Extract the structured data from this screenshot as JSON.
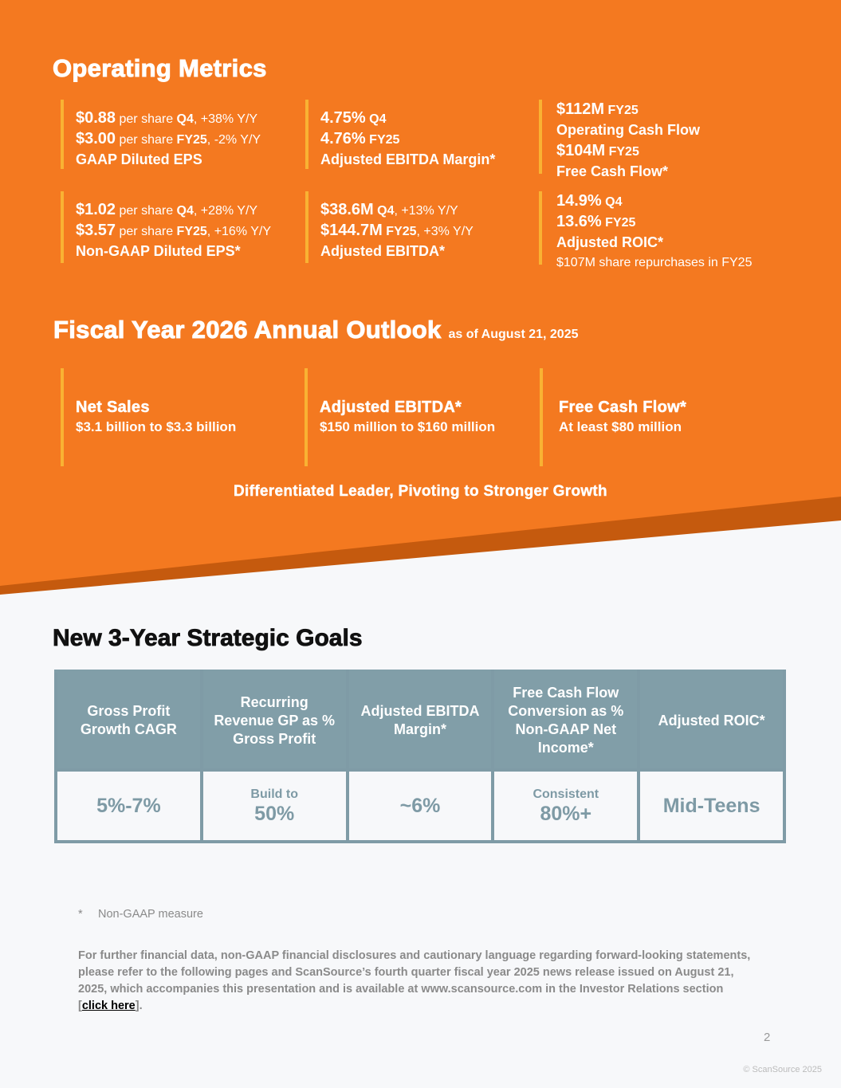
{
  "colors": {
    "orange": "#F47920",
    "orange_dark": "#C55A0E",
    "accent_bar": "#F9B233",
    "table_header": "#819EA8",
    "table_value": "#7E9AA5"
  },
  "operating_metrics": {
    "title": "Operating Metrics",
    "cells": [
      {
        "lines": [
          [
            {
              "text": "$0.88",
              "style": "value"
            },
            {
              "text": " per share ",
              "style": "normal"
            },
            {
              "text": "Q4",
              "style": "bold"
            },
            {
              "text": ", +38% Y/Y",
              "style": "normal"
            }
          ],
          [
            {
              "text": "$3.00",
              "style": "value"
            },
            {
              "text": " per share ",
              "style": "normal"
            },
            {
              "text": "FY25",
              "style": "bold"
            },
            {
              "text": ", -2% Y/Y",
              "style": "normal"
            }
          ],
          [
            {
              "text": "GAAP Diluted EPS",
              "style": "label"
            }
          ]
        ]
      },
      {
        "lines": [
          [
            {
              "text": "4.75%",
              "style": "value"
            },
            {
              "text": " Q4",
              "style": "bold"
            }
          ],
          [
            {
              "text": "4.76%",
              "style": "value"
            },
            {
              "text": " FY25",
              "style": "bold"
            }
          ],
          [
            {
              "text": "Adjusted EBITDA Margin*",
              "style": "label"
            }
          ]
        ]
      },
      {
        "lines": [
          [
            {
              "text": "$112M",
              "style": "value"
            },
            {
              "text": " FY25",
              "style": "bold"
            }
          ],
          [
            {
              "text": "Operating Cash Flow",
              "style": "label"
            }
          ],
          [
            {
              "text": "$104M",
              "style": "value"
            },
            {
              "text": " FY25",
              "style": "bold"
            }
          ],
          [
            {
              "text": "Free Cash Flow*",
              "style": "label"
            }
          ]
        ]
      },
      {
        "lines": [
          [
            {
              "text": "$1.02",
              "style": "value"
            },
            {
              "text": " per share ",
              "style": "normal"
            },
            {
              "text": "Q4",
              "style": "bold"
            },
            {
              "text": ", +28% Y/Y",
              "style": "normal"
            }
          ],
          [
            {
              "text": "$3.57",
              "style": "value"
            },
            {
              "text": " per share ",
              "style": "normal"
            },
            {
              "text": "FY25",
              "style": "bold"
            },
            {
              "text": ", +16% Y/Y",
              "style": "normal"
            }
          ],
          [
            {
              "text": "Non-GAAP Diluted EPS*",
              "style": "label"
            }
          ]
        ]
      },
      {
        "lines": [
          [
            {
              "text": "$38.6M",
              "style": "value"
            },
            {
              "text": " Q4",
              "style": "bold"
            },
            {
              "text": ", +13% Y/Y",
              "style": "normal"
            }
          ],
          [
            {
              "text": "$144.7M",
              "style": "value"
            },
            {
              "text": " FY25",
              "style": "bold"
            },
            {
              "text": ", +3% Y/Y",
              "style": "normal"
            }
          ],
          [
            {
              "text": "Adjusted EBITDA*",
              "style": "label"
            }
          ]
        ]
      },
      {
        "lines": [
          [
            {
              "text": "14.9%",
              "style": "value"
            },
            {
              "text": " Q4",
              "style": "bold"
            }
          ],
          [
            {
              "text": "13.6%",
              "style": "value"
            },
            {
              "text": " FY25",
              "style": "bold"
            }
          ],
          [
            {
              "text": "Adjusted ROIC*",
              "style": "label"
            }
          ],
          [
            {
              "text": "$107M share repurchases in FY25",
              "style": "small"
            }
          ]
        ]
      }
    ]
  },
  "outlook": {
    "title": "Fiscal Year 2026 Annual Outlook",
    "subtitle": "as of August 21, 2025",
    "items": [
      {
        "title": "Net Sales",
        "value": "$3.1 billion to $3.3 billion"
      },
      {
        "title": "Adjusted EBITDA*",
        "value": "$150 million to $160 million"
      },
      {
        "title": "Free Cash Flow*",
        "value": "At least $80 million"
      }
    ],
    "tagline": "Differentiated Leader, Pivoting to Stronger Growth"
  },
  "goals": {
    "title": "New 3-Year Strategic Goals",
    "headers": [
      "Gross Profit Growth CAGR",
      "Recurring Revenue GP as % Gross Profit",
      "Adjusted EBITDA Margin*",
      "Free Cash Flow Conversion as % Non-GAAP Net Income*",
      "Adjusted ROIC*"
    ],
    "values": [
      {
        "prefix": "",
        "value": "5%-7%"
      },
      {
        "prefix": "Build to",
        "value": "50%"
      },
      {
        "prefix": "",
        "value": "~6%"
      },
      {
        "prefix": "Consistent",
        "value": "80%+"
      },
      {
        "prefix": "",
        "value": "Mid-Teens"
      }
    ]
  },
  "footnote": {
    "marker": "*",
    "text": "Non-GAAP measure"
  },
  "disclaimer": {
    "text": "For further financial data, non-GAAP financial disclosures and cautionary language regarding forward-looking statements, please refer to the following pages and ScanSource’s fourth quarter fiscal year 2025 news release issued on August 21, 2025, which accompanies this presentation and is available at www.scansource.com in the Investor Relations section [",
    "link": "click here",
    "end": "]."
  },
  "page_number": "2",
  "copyright": "© ScanSource 2025"
}
